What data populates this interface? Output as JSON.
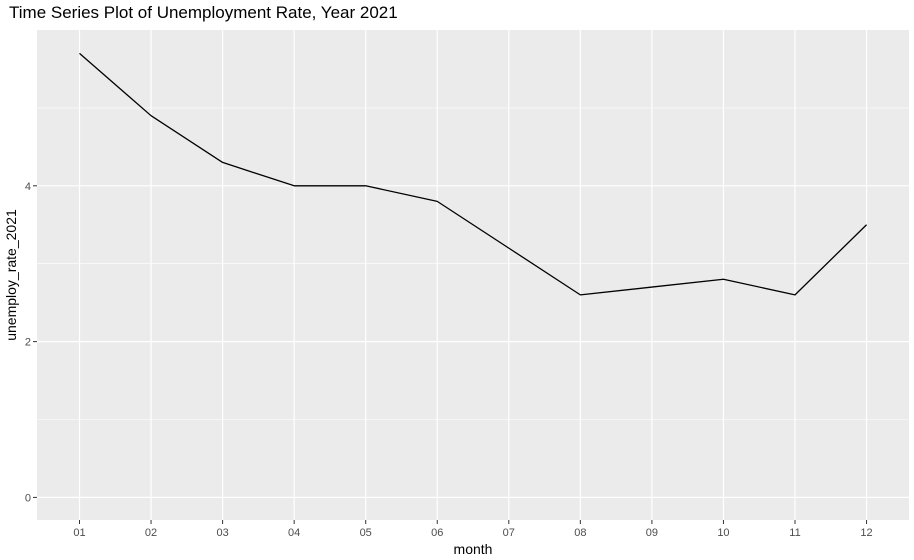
{
  "chart_data": {
    "type": "line",
    "title": "Time Series Plot of Unemployment Rate, Year 2021",
    "xlabel": "month",
    "ylabel": "unemploy_rate_2021",
    "categories": [
      "01",
      "02",
      "03",
      "04",
      "05",
      "06",
      "07",
      "08",
      "09",
      "10",
      "11",
      "12"
    ],
    "series": [
      {
        "values": [
          5.7,
          4.9,
          4.3,
          4.0,
          4.0,
          3.8,
          3.2,
          2.6,
          2.7,
          2.8,
          2.6,
          3.5
        ]
      }
    ],
    "ylim": [
      -0.29,
      6.0
    ],
    "yticks": [
      0,
      2,
      4
    ],
    "grid": true,
    "colors": {
      "panel": "#ebebeb",
      "grid": "#ffffff",
      "line": "#000000"
    }
  }
}
